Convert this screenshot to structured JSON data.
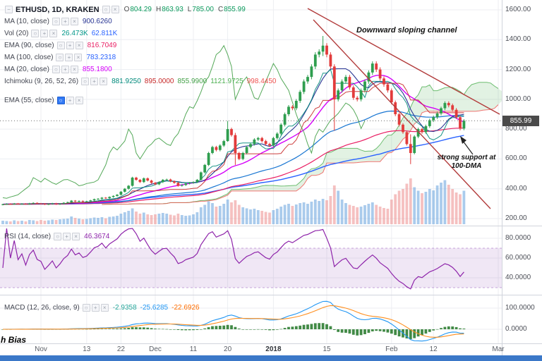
{
  "symbol_bar": {
    "title": "ETHUSD, 1D, KRAKEN",
    "o_label": "O",
    "o": "804.29",
    "h_label": "H",
    "h": "863.93",
    "l_label": "L",
    "l": "785.00",
    "c_label": "C",
    "c": "855.99"
  },
  "indicators": [
    {
      "label": "MA (10, close)",
      "active": false,
      "values": [
        {
          "text": "900.6260",
          "color": "#283593"
        }
      ]
    },
    {
      "label": "Vol (20)",
      "active": false,
      "values": [
        {
          "text": "26.473K",
          "color": "#009688"
        },
        {
          "text": "62.811K",
          "color": "#2962ff"
        }
      ]
    },
    {
      "label": "EMA (90, close)",
      "active": false,
      "values": [
        {
          "text": "816.7049",
          "color": "#e91e63"
        }
      ]
    },
    {
      "label": "MA (100, close)",
      "active": false,
      "values": [
        {
          "text": "783.2318",
          "color": "#2962ff"
        }
      ]
    },
    {
      "label": "MA (20, close)",
      "active": false,
      "values": [
        {
          "text": "855.1800",
          "color": "#d500f9"
        }
      ]
    },
    {
      "label": "Ichimoku (9, 26, 52, 26)",
      "active": false,
      "values": [
        {
          "text": "881.9250",
          "color": "#00897b"
        },
        {
          "text": "895.0000",
          "color": "#c62828"
        },
        {
          "text": "855.9900",
          "color": "#43a047"
        },
        {
          "text": "1121.9725",
          "color": "#4caf50"
        },
        {
          "text": "998.4450",
          "color": "#ef5350"
        }
      ]
    },
    {
      "label": "EMA (55, close)",
      "active": true,
      "values": []
    }
  ],
  "rsi_legend": {
    "label": "RSI (14, close)",
    "values": [
      {
        "text": "46.3674",
        "color": "#8e24aa"
      }
    ]
  },
  "macd_legend": {
    "label": "MACD (12, 26, close, 9)",
    "values": [
      {
        "text": "-2.9358",
        "color": "#26a69a"
      },
      {
        "text": "-25.6285",
        "color": "#2196f3"
      },
      {
        "text": "-22.6926",
        "color": "#ff6d00"
      }
    ]
  },
  "annotations": {
    "channel": "Downward sloping channel",
    "support_line1": "strong support at",
    "support_line2": "100-DMA",
    "bias": "h Bias"
  },
  "price_axis": {
    "labels": [
      "1600.00",
      "1400.00",
      "1200.00",
      "1000.00",
      "800.00",
      "600.00",
      "400.00",
      "200.00"
    ],
    "last_price": "855.99"
  },
  "rsi_axis": [
    "80.0000",
    "60.0000",
    "40.0000"
  ],
  "macd_axis": [
    "100.0000",
    "0.0000"
  ],
  "colors": {
    "up": "#2f9e4f",
    "down": "#e23b3b",
    "volume_up": "rgba(100,160,220,0.55)",
    "volume_down": "rgba(235,130,130,0.5)",
    "ma10": "#283593",
    "ma20": "#d500f9",
    "ma100": "#2962ff",
    "ema55": "#1976d2",
    "ema90": "#e91e63",
    "tenkan": "#00897b",
    "kijun": "#c62828",
    "chikou": "#43a047",
    "span_a": "#4caf50",
    "span_b": "#ef5350",
    "cloud_green": "rgba(76,175,80,0.16)",
    "cloud_red": "rgba(239,83,80,0.16)",
    "rsi": "#8e24aa",
    "rsi_band": "rgba(146,84,187,0.14)",
    "rsi_band_edge": "rgba(146,84,187,0.5)",
    "macd_line": "#2196f3",
    "macd_signal": "#ff8f1f",
    "macd_hist": "#2e7d32",
    "channel": "#b23b3b",
    "grid": "#eceef2",
    "border": "#d1d4dc",
    "last_price_bg": "#4a4a4a",
    "last_price_line": "#6b6b6b",
    "bottom_bar": "#3b78c8"
  },
  "chart_data": {
    "type": "candlestick",
    "title": "ETHUSD 1D KRAKEN with MA/EMA, Ichimoku cloud, volume, RSI and MACD panes",
    "price_axis_range": [
      200,
      1600
    ],
    "closes": [
      296,
      299,
      297,
      301,
      298,
      300,
      297,
      302,
      305,
      301,
      300,
      295,
      298,
      302,
      296,
      300,
      306,
      310,
      320,
      315,
      318,
      314,
      316,
      322,
      330,
      333,
      340,
      336,
      345,
      352,
      360,
      380,
      400,
      420,
      475,
      460,
      445,
      470,
      455,
      440,
      430,
      445,
      460,
      462,
      450,
      440,
      420,
      425,
      435,
      440,
      445,
      460,
      510,
      560,
      640,
      680,
      660,
      690,
      720,
      800,
      760,
      640,
      600,
      640,
      680,
      700,
      730,
      740,
      720,
      700,
      690,
      740,
      770,
      830,
      900,
      950,
      940,
      990,
      1050,
      1120,
      1150,
      1220,
      1300,
      1320,
      1360,
      1300,
      1220,
      1000,
      1060,
      1120,
      1150,
      1080,
      1010,
      1000,
      1060,
      1120,
      1180,
      1240,
      1200,
      1140,
      1100,
      1060,
      980,
      900,
      830,
      780,
      700,
      640,
      750,
      800,
      780,
      820,
      860,
      880,
      905,
      940,
      975,
      960,
      930,
      880,
      804,
      856
    ],
    "volumes": [
      10,
      9,
      8,
      11,
      9,
      10,
      8,
      12,
      11,
      9,
      12,
      10,
      11,
      13,
      12,
      14,
      15,
      16,
      22,
      18,
      16,
      14,
      15,
      17,
      19,
      18,
      20,
      17,
      21,
      22,
      24,
      30,
      34,
      38,
      45,
      36,
      30,
      33,
      28,
      26,
      28,
      30,
      32,
      30,
      27,
      25,
      30,
      26,
      24,
      25,
      28,
      34,
      48,
      55,
      65,
      60,
      50,
      52,
      58,
      70,
      62,
      68,
      55,
      48,
      45,
      42,
      44,
      40,
      38,
      35,
      33,
      40,
      44,
      50,
      55,
      58,
      52,
      56,
      60,
      62,
      58,
      64,
      70,
      66,
      72,
      68,
      80,
      110,
      95,
      70,
      60,
      55,
      52,
      48,
      50,
      54,
      58,
      62,
      55,
      50,
      46,
      44,
      70,
      85,
      95,
      100,
      115,
      130,
      105,
      95,
      88,
      92,
      100,
      96,
      110,
      118,
      125,
      112,
      100,
      90,
      85,
      95
    ],
    "wick_overrides": {
      "59": [
        855,
        715
      ],
      "61": [
        775,
        560
      ],
      "84": [
        1425,
        1290
      ],
      "87": [
        1235,
        790
      ],
      "107": [
        765,
        565
      ]
    },
    "ticks": [
      {
        "label": "Nov",
        "i": 10
      },
      {
        "label": "13",
        "i": 22
      },
      {
        "label": "22",
        "i": 31
      },
      {
        "label": "Dec",
        "i": 40
      },
      {
        "label": "11",
        "i": 50
      },
      {
        "label": "20",
        "i": 59
      },
      {
        "label": "2018",
        "i": 71
      },
      {
        "label": "15",
        "i": 85
      },
      {
        "label": "Feb",
        "i": 102
      },
      {
        "label": "12",
        "i": 113
      },
      {
        "label": "Mar",
        "i": 130
      }
    ],
    "overlays": [
      "MA(10)",
      "MA(20)",
      "MA(100)",
      "EMA(55)",
      "EMA(90)",
      "Ichimoku(9,26,52,26)"
    ],
    "channel": {
      "upper": [
        [
          436,
          12
        ],
        [
          708,
          162
        ]
      ],
      "lower": [
        [
          444,
          28
        ],
        [
          695,
          296
        ]
      ]
    },
    "last_price": 855.99,
    "rsi": {
      "period": 14,
      "current": 46.3674,
      "band": [
        30,
        70
      ],
      "axis_values": [
        80,
        60,
        40
      ]
    },
    "macd": {
      "params": [
        12,
        26,
        9
      ],
      "current": [
        -2.9358,
        -25.6285,
        -22.6926
      ],
      "axis_values": [
        100,
        0
      ]
    }
  }
}
